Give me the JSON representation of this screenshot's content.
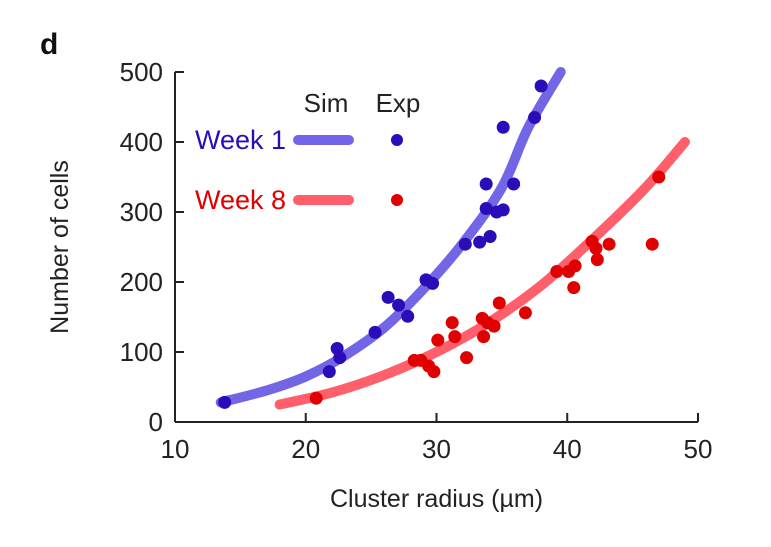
{
  "panel_label": "d",
  "colors": {
    "week1_line": "#7366e6",
    "week1_point": "#2a0db8",
    "week8_line": "#ff5f6b",
    "week8_point": "#e00000",
    "axis": "#222222"
  },
  "chart_data": {
    "type": "scatter",
    "title": "",
    "xlabel": "Cluster radius (µm)",
    "ylabel": "Number of cells",
    "xlim": [
      10,
      50
    ],
    "ylim": [
      0,
      500
    ],
    "xticks": [
      10,
      20,
      30,
      40,
      50
    ],
    "yticks": [
      0,
      100,
      200,
      300,
      400,
      500
    ],
    "grid": false,
    "legend": {
      "placement": "top-left",
      "header_sim": "Sim",
      "header_exp": "Exp"
    },
    "series": [
      {
        "name": "Week 1",
        "sim_curve": [
          [
            13.5,
            28
          ],
          [
            17,
            45
          ],
          [
            20,
            65
          ],
          [
            23,
            95
          ],
          [
            26,
            135
          ],
          [
            29,
            190
          ],
          [
            32,
            255
          ],
          [
            35,
            335
          ],
          [
            37,
            420
          ],
          [
            39.5,
            500
          ]
        ],
        "exp_points": [
          [
            13.8,
            28
          ],
          [
            21.8,
            72
          ],
          [
            22.4,
            105
          ],
          [
            22.6,
            92
          ],
          [
            25.3,
            128
          ],
          [
            26.3,
            178
          ],
          [
            27.1,
            167
          ],
          [
            27.8,
            151
          ],
          [
            29.2,
            203
          ],
          [
            29.7,
            198
          ],
          [
            32.2,
            254
          ],
          [
            33.3,
            257
          ],
          [
            33.8,
            305
          ],
          [
            33.8,
            340
          ],
          [
            34.1,
            265
          ],
          [
            34.6,
            300
          ],
          [
            35.1,
            303
          ],
          [
            35.1,
            421
          ],
          [
            35.9,
            340
          ],
          [
            37.5,
            435
          ],
          [
            38.0,
            480
          ]
        ]
      },
      {
        "name": "Week 8",
        "sim_curve": [
          [
            18,
            25
          ],
          [
            22,
            42
          ],
          [
            26,
            67
          ],
          [
            30,
            100
          ],
          [
            34,
            142
          ],
          [
            38,
            195
          ],
          [
            42,
            262
          ],
          [
            46,
            335
          ],
          [
            49,
            400
          ]
        ],
        "exp_points": [
          [
            20.8,
            34
          ],
          [
            28.3,
            88
          ],
          [
            28.8,
            88
          ],
          [
            29.4,
            80
          ],
          [
            29.8,
            72
          ],
          [
            30.1,
            117
          ],
          [
            31.2,
            142
          ],
          [
            31.4,
            122
          ],
          [
            32.3,
            92
          ],
          [
            33.5,
            148
          ],
          [
            33.6,
            122
          ],
          [
            33.9,
            142
          ],
          [
            34.4,
            137
          ],
          [
            34.8,
            170
          ],
          [
            36.8,
            156
          ],
          [
            39.2,
            215
          ],
          [
            40.1,
            215
          ],
          [
            40.5,
            192
          ],
          [
            40.6,
            223
          ],
          [
            41.9,
            258
          ],
          [
            42.2,
            248
          ],
          [
            42.3,
            232
          ],
          [
            43.2,
            254
          ],
          [
            46.5,
            254
          ],
          [
            47.0,
            350
          ]
        ]
      }
    ]
  }
}
